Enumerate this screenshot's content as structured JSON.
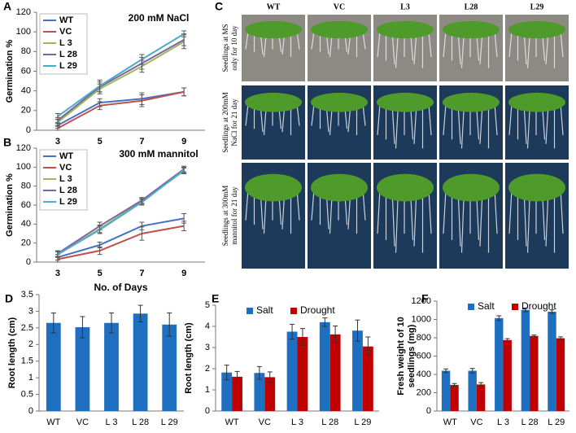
{
  "chart_data": [
    {
      "type": "line",
      "panel_label": "A",
      "title": "200 mM NaCl",
      "y_label": "Germination %",
      "categories": [
        "3",
        "5",
        "7",
        "9"
      ],
      "ylim": [
        0,
        120
      ],
      "yticks": [
        0,
        20,
        40,
        60,
        80,
        100,
        120
      ],
      "legend": "upper left",
      "series": [
        {
          "name": "WT",
          "color": "#4472c4",
          "values": [
            5,
            28,
            32,
            39
          ],
          "errors": [
            3,
            4,
            6,
            4
          ]
        },
        {
          "name": "VC",
          "color": "#c0504d",
          "values": [
            2,
            25,
            30,
            39
          ],
          "errors": [
            2,
            4,
            6,
            4
          ]
        },
        {
          "name": "L 3",
          "color": "#9bbb59",
          "values": [
            8,
            42,
            65,
            90
          ],
          "errors": [
            3,
            5,
            6,
            7
          ]
        },
        {
          "name": "L 28",
          "color": "#8064a2",
          "values": [
            10,
            44,
            68,
            92
          ],
          "errors": [
            3,
            5,
            6,
            6
          ]
        },
        {
          "name": "L 29",
          "color": "#4bacc6",
          "values": [
            14,
            45,
            72,
            98
          ],
          "errors": [
            3,
            6,
            5,
            3
          ]
        }
      ]
    },
    {
      "type": "line",
      "panel_label": "B",
      "title": "300 mM mannitol",
      "y_label": "Germination %",
      "x_label": "No. of Days",
      "categories": [
        "3",
        "5",
        "7",
        "9"
      ],
      "ylim": [
        0,
        120
      ],
      "yticks": [
        0,
        20,
        40,
        60,
        80,
        100,
        120
      ],
      "legend": "upper left",
      "series": [
        {
          "name": "WT",
          "color": "#4472c4",
          "values": [
            5,
            18,
            38,
            46
          ],
          "errors": [
            3,
            3,
            4,
            5
          ]
        },
        {
          "name": "VC",
          "color": "#c0504d",
          "values": [
            3,
            12,
            30,
            38
          ],
          "errors": [
            3,
            4,
            7,
            5
          ]
        },
        {
          "name": "L 3",
          "color": "#9bbb59",
          "values": [
            8,
            35,
            64,
            96
          ],
          "errors": [
            3,
            4,
            3,
            3
          ]
        },
        {
          "name": "L 28",
          "color": "#8064a2",
          "values": [
            9,
            38,
            65,
            98
          ],
          "errors": [
            3,
            4,
            3,
            3
          ]
        },
        {
          "name": "L 29",
          "color": "#4bacc6",
          "values": [
            8,
            34,
            63,
            97
          ],
          "errors": [
            3,
            4,
            3,
            3
          ]
        }
      ]
    },
    {
      "type": "bar",
      "panel_label": "D",
      "y_label": "Root length (cm)",
      "categories": [
        "WT",
        "VC",
        "L 3",
        "L 28",
        "L 29"
      ],
      "ylim": [
        0,
        3.5
      ],
      "yticks": [
        0,
        0.5,
        1,
        1.5,
        2,
        2.5,
        3,
        3.5
      ],
      "color": "#1f6fc0",
      "values": [
        2.65,
        2.52,
        2.65,
        2.93,
        2.6
      ],
      "errors": [
        0.3,
        0.32,
        0.3,
        0.25,
        0.35
      ]
    },
    {
      "type": "bar",
      "panel_label": "E",
      "y_label": "Root length (cm)",
      "legend": "top",
      "categories": [
        "WT",
        "VC",
        "L 3",
        "L 28",
        "L 29"
      ],
      "ylim": [
        0,
        5
      ],
      "yticks": [
        0,
        1,
        2,
        3,
        4,
        5
      ],
      "series": [
        {
          "name": "Salt",
          "color": "#1f6fc0",
          "values": [
            1.82,
            1.8,
            3.75,
            4.2,
            3.8
          ],
          "errors": [
            0.35,
            0.3,
            0.35,
            0.2,
            0.5
          ]
        },
        {
          "name": "Drought",
          "color": "#c00000",
          "values": [
            1.62,
            1.6,
            3.5,
            3.62,
            3.05
          ],
          "errors": [
            0.25,
            0.25,
            0.4,
            0.4,
            0.45
          ]
        }
      ]
    },
    {
      "type": "bar",
      "panel_label": "F",
      "y_label": [
        "Fresh weight of 10",
        "seedlings (mg)"
      ],
      "legend": "top",
      "categories": [
        "WT",
        "VC",
        "L 3",
        "L 28",
        "L 29"
      ],
      "ylim": [
        0,
        1200
      ],
      "yticks": [
        0,
        200,
        400,
        600,
        800,
        1000,
        1200
      ],
      "series": [
        {
          "name": "Salt",
          "color": "#1f6fc0",
          "values": [
            440,
            440,
            1015,
            1105,
            1085
          ],
          "errors": [
            20,
            25,
            25,
            20,
            20
          ]
        },
        {
          "name": "Drought",
          "color": "#c00000",
          "values": [
            285,
            290,
            775,
            820,
            795
          ],
          "errors": [
            15,
            20,
            15,
            10,
            15
          ]
        }
      ]
    }
  ],
  "image_panel": {
    "panel_label": "C",
    "columns": [
      "WT",
      "VC",
      "L3",
      "L28",
      "L29"
    ],
    "rows": [
      [
        "Seedlings at MS",
        "only for 10 day"
      ],
      [
        "Seedlings at 200mM",
        "NaCl for 21  day"
      ],
      [
        "Seedlings at 300mM",
        "mannitol for 21  day"
      ]
    ]
  }
}
